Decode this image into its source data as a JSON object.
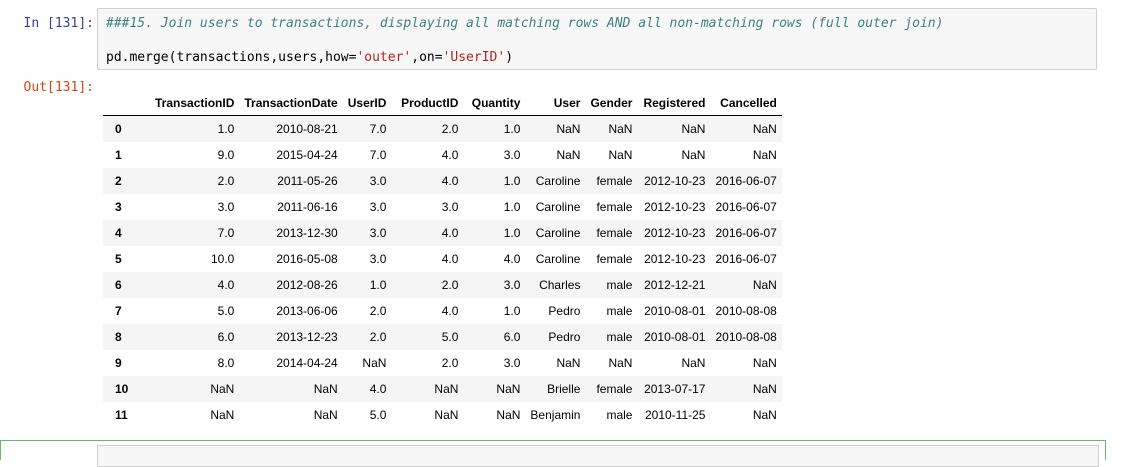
{
  "input_prompt": "In [131]:",
  "output_prompt": "Out[131]:",
  "code": {
    "comment": "###15. Join users to transactions, displaying all matching rows AND all non-matching rows (full outer join)",
    "line2_pre": "pd.merge(transactions,users,how=",
    "line2_str1": "'outer'",
    "line2_mid": ",on=",
    "line2_str2": "'UserID'",
    "line2_post": ")"
  },
  "table": {
    "columns": [
      "TransactionID",
      "TransactionDate",
      "UserID",
      "ProductID",
      "Quantity",
      "User",
      "Gender",
      "Registered",
      "Cancelled"
    ],
    "rows": [
      {
        "index": "0",
        "cells": [
          "1.0",
          "2010-08-21",
          "7.0",
          "2.0",
          "1.0",
          "NaN",
          "NaN",
          "NaN",
          "NaN"
        ]
      },
      {
        "index": "1",
        "cells": [
          "9.0",
          "2015-04-24",
          "7.0",
          "4.0",
          "3.0",
          "NaN",
          "NaN",
          "NaN",
          "NaN"
        ]
      },
      {
        "index": "2",
        "cells": [
          "2.0",
          "2011-05-26",
          "3.0",
          "4.0",
          "1.0",
          "Caroline",
          "female",
          "2012-10-23",
          "2016-06-07"
        ]
      },
      {
        "index": "3",
        "cells": [
          "3.0",
          "2011-06-16",
          "3.0",
          "3.0",
          "1.0",
          "Caroline",
          "female",
          "2012-10-23",
          "2016-06-07"
        ]
      },
      {
        "index": "4",
        "cells": [
          "7.0",
          "2013-12-30",
          "3.0",
          "4.0",
          "1.0",
          "Caroline",
          "female",
          "2012-10-23",
          "2016-06-07"
        ]
      },
      {
        "index": "5",
        "cells": [
          "10.0",
          "2016-05-08",
          "3.0",
          "4.0",
          "4.0",
          "Caroline",
          "female",
          "2012-10-23",
          "2016-06-07"
        ]
      },
      {
        "index": "6",
        "cells": [
          "4.0",
          "2012-08-26",
          "1.0",
          "2.0",
          "3.0",
          "Charles",
          "male",
          "2012-12-21",
          "NaN"
        ]
      },
      {
        "index": "7",
        "cells": [
          "5.0",
          "2013-06-06",
          "2.0",
          "4.0",
          "1.0",
          "Pedro",
          "male",
          "2010-08-01",
          "2010-08-08"
        ]
      },
      {
        "index": "8",
        "cells": [
          "6.0",
          "2013-12-23",
          "2.0",
          "5.0",
          "6.0",
          "Pedro",
          "male",
          "2010-08-01",
          "2010-08-08"
        ]
      },
      {
        "index": "9",
        "cells": [
          "8.0",
          "2014-04-24",
          "NaN",
          "2.0",
          "3.0",
          "NaN",
          "NaN",
          "NaN",
          "NaN"
        ]
      },
      {
        "index": "10",
        "cells": [
          "NaN",
          "NaN",
          "4.0",
          "NaN",
          "NaN",
          "Brielle",
          "female",
          "2013-07-17",
          "NaN"
        ]
      },
      {
        "index": "11",
        "cells": [
          "NaN",
          "NaN",
          "5.0",
          "NaN",
          "NaN",
          "Benjamin",
          "male",
          "2010-11-25",
          "NaN"
        ]
      }
    ]
  },
  "colors": {
    "input_prompt": "#303f9f",
    "output_prompt": "#d84315",
    "comment": "#408080",
    "string": "#ba2121",
    "selected_cell_border": "#66bb6a"
  }
}
